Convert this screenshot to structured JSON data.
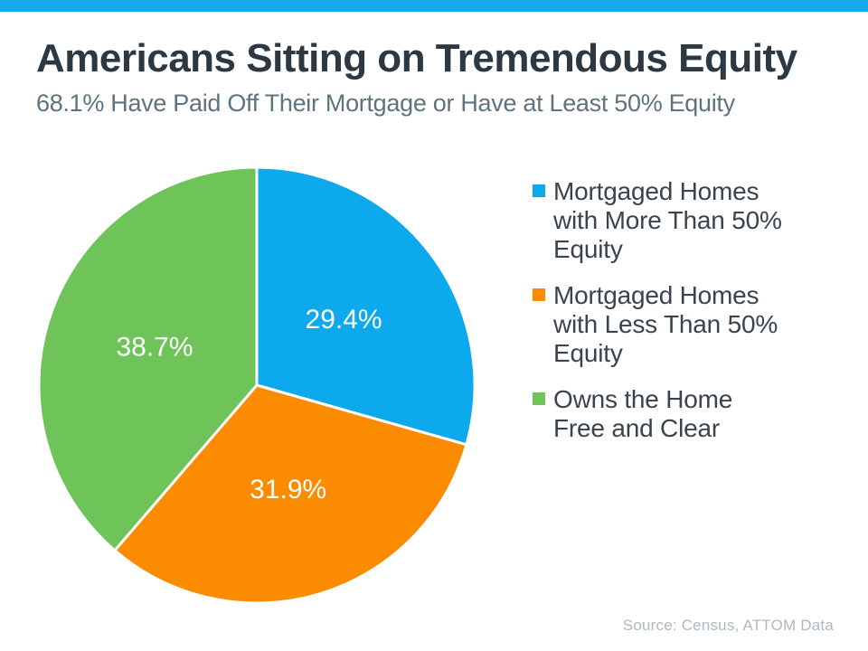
{
  "page": {
    "topbar_color": "#18a8ec",
    "background_color": "#ffffff"
  },
  "chart_data": {
    "type": "pie",
    "title": "Americans Sitting on Tremendous Equity",
    "subtitle": "68.1% Have Paid Off Their Mortgage or Have at Least 50% Equity",
    "source": "Source: Census, ATTOM Data",
    "start_angle_deg": 0,
    "direction": "clockwise",
    "legend_position": "right",
    "label_radius_fraction": 0.5,
    "slice_border_color": "#ffffff",
    "slices": [
      {
        "label": "Mortgaged Homes with More Than 50% Equity",
        "value": 29.4,
        "display": "29.4%",
        "color": "#0ca9ec"
      },
      {
        "label": "Mortgaged Homes with Less Than 50% Equity",
        "value": 31.9,
        "display": "31.9%",
        "color": "#fb8b00"
      },
      {
        "label": "Owns the Home Free and Clear",
        "value": 38.7,
        "display": "38.7%",
        "color": "#6ec458"
      }
    ]
  },
  "text_colors": {
    "title": "#2c3842",
    "subtitle": "#5d737e",
    "legend": "#3b444e",
    "source": "#aeb9c1"
  }
}
